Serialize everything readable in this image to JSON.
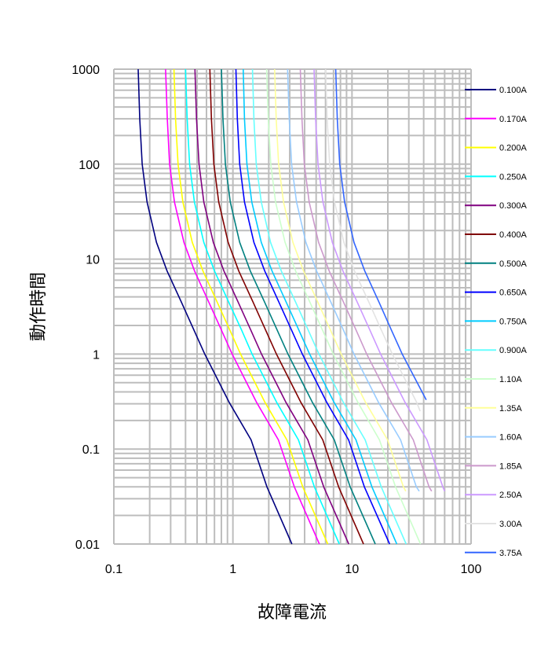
{
  "chart_data": {
    "type": "line",
    "title": "",
    "xlabel": "故障電流",
    "ylabel": "動作時間",
    "x_scale": "log",
    "y_scale": "log",
    "xlim": [
      0.1,
      100
    ],
    "ylim": [
      0.01,
      1000
    ],
    "grid": true,
    "legend_position": "right",
    "x_ticks": [
      "0.1",
      "1",
      "10",
      "100"
    ],
    "y_ticks": [
      "0.01",
      "0.1",
      "1",
      "10",
      "100",
      "1000"
    ],
    "series": [
      {
        "name": "0.100A",
        "color": "#000080",
        "points": [
          [
            0.16,
            1000
          ],
          [
            0.165,
            300
          ],
          [
            0.173,
            100
          ],
          [
            0.19,
            40
          ],
          [
            0.228,
            15
          ],
          [
            0.28,
            7.5
          ],
          [
            0.37,
            3.5
          ],
          [
            0.47,
            1.8
          ],
          [
            0.58,
            1
          ],
          [
            0.93,
            0.31
          ],
          [
            1.42,
            0.125
          ],
          [
            1.93,
            0.04
          ],
          [
            3.13,
            0.01
          ]
        ]
      },
      {
        "name": "0.170A",
        "color": "#FF00FF",
        "points": [
          [
            0.272,
            1000
          ],
          [
            0.281,
            300
          ],
          [
            0.294,
            100
          ],
          [
            0.323,
            40
          ],
          [
            0.388,
            15
          ],
          [
            0.476,
            7.5
          ],
          [
            0.629,
            3.5
          ],
          [
            0.799,
            1.8
          ],
          [
            0.986,
            1
          ],
          [
            1.58,
            0.31
          ],
          [
            2.41,
            0.125
          ],
          [
            3.28,
            0.04
          ],
          [
            5.32,
            0.01
          ]
        ]
      },
      {
        "name": "0.200A",
        "color": "#FFFF00",
        "points": [
          [
            0.32,
            1000
          ],
          [
            0.33,
            300
          ],
          [
            0.346,
            100
          ],
          [
            0.38,
            40
          ],
          [
            0.456,
            15
          ],
          [
            0.56,
            7.5
          ],
          [
            0.74,
            3.5
          ],
          [
            0.94,
            1.8
          ],
          [
            1.16,
            1
          ],
          [
            1.86,
            0.31
          ],
          [
            2.84,
            0.125
          ],
          [
            3.86,
            0.04
          ],
          [
            6.26,
            0.01
          ]
        ]
      },
      {
        "name": "0.250A",
        "color": "#00FFFF",
        "points": [
          [
            0.4,
            1000
          ],
          [
            0.413,
            300
          ],
          [
            0.433,
            100
          ],
          [
            0.475,
            40
          ],
          [
            0.57,
            15
          ],
          [
            0.7,
            7.5
          ],
          [
            0.925,
            3.5
          ],
          [
            1.18,
            1.8
          ],
          [
            1.45,
            1
          ],
          [
            2.33,
            0.31
          ],
          [
            3.55,
            0.125
          ],
          [
            4.83,
            0.04
          ],
          [
            7.83,
            0.01
          ]
        ]
      },
      {
        "name": "0.300A",
        "color": "#800080",
        "points": [
          [
            0.48,
            1000
          ],
          [
            0.495,
            300
          ],
          [
            0.519,
            100
          ],
          [
            0.57,
            40
          ],
          [
            0.684,
            15
          ],
          [
            0.84,
            7.5
          ],
          [
            1.11,
            3.5
          ],
          [
            1.41,
            1.8
          ],
          [
            1.74,
            1
          ],
          [
            2.79,
            0.31
          ],
          [
            4.26,
            0.125
          ],
          [
            5.79,
            0.04
          ],
          [
            9.39,
            0.01
          ]
        ]
      },
      {
        "name": "0.400A",
        "color": "#800000",
        "points": [
          [
            0.64,
            1000
          ],
          [
            0.66,
            300
          ],
          [
            0.692,
            100
          ],
          [
            0.76,
            40
          ],
          [
            0.912,
            15
          ],
          [
            1.12,
            7.5
          ],
          [
            1.48,
            3.5
          ],
          [
            1.88,
            1.8
          ],
          [
            2.32,
            1
          ],
          [
            3.72,
            0.31
          ],
          [
            5.68,
            0.125
          ],
          [
            7.72,
            0.04
          ],
          [
            12.5,
            0.01
          ]
        ]
      },
      {
        "name": "0.500A",
        "color": "#008080",
        "points": [
          [
            0.8,
            1000
          ],
          [
            0.825,
            300
          ],
          [
            0.865,
            100
          ],
          [
            0.95,
            40
          ],
          [
            1.14,
            15
          ],
          [
            1.4,
            7.5
          ],
          [
            1.85,
            3.5
          ],
          [
            2.35,
            1.8
          ],
          [
            2.9,
            1
          ],
          [
            4.65,
            0.31
          ],
          [
            7.1,
            0.125
          ],
          [
            9.65,
            0.04
          ],
          [
            15.7,
            0.01
          ]
        ]
      },
      {
        "name": "0.650A",
        "color": "#0000FF",
        "points": [
          [
            1.06,
            1000
          ],
          [
            1.09,
            300
          ],
          [
            1.14,
            100
          ],
          [
            1.25,
            40
          ],
          [
            1.5,
            15
          ],
          [
            1.85,
            7.5
          ],
          [
            2.44,
            3.5
          ],
          [
            3.1,
            1.8
          ],
          [
            3.83,
            1
          ],
          [
            6.14,
            0.31
          ],
          [
            9.37,
            0.125
          ],
          [
            12.7,
            0.04
          ],
          [
            20.7,
            0.01
          ]
        ]
      },
      {
        "name": "0.750A",
        "color": "#00CCFF",
        "points": [
          [
            1.22,
            1000
          ],
          [
            1.25,
            300
          ],
          [
            1.31,
            100
          ],
          [
            1.44,
            40
          ],
          [
            1.73,
            15
          ],
          [
            2.13,
            7.5
          ],
          [
            2.81,
            3.5
          ],
          [
            3.57,
            1.8
          ],
          [
            4.41,
            1
          ],
          [
            7.07,
            0.31
          ],
          [
            10.8,
            0.125
          ],
          [
            14.7,
            0.04
          ],
          [
            23.8,
            0.01
          ]
        ]
      },
      {
        "name": "0.900A",
        "color": "#66FFFF",
        "points": [
          [
            1.46,
            1000
          ],
          [
            1.5,
            300
          ],
          [
            1.57,
            100
          ],
          [
            1.73,
            40
          ],
          [
            2.07,
            15
          ],
          [
            2.55,
            7.5
          ],
          [
            3.37,
            3.5
          ],
          [
            4.28,
            1.8
          ],
          [
            5.28,
            1
          ],
          [
            8.46,
            0.31
          ],
          [
            12.9,
            0.125
          ],
          [
            17.6,
            0.04
          ],
          [
            28.5,
            0.01
          ]
        ]
      },
      {
        "name": "1.10A",
        "color": "#CCFFCC",
        "points": [
          [
            1.92,
            1000
          ],
          [
            1.98,
            300
          ],
          [
            2.08,
            100
          ],
          [
            2.28,
            40
          ],
          [
            2.74,
            15
          ],
          [
            3.36,
            7.5
          ],
          [
            4.44,
            3.5
          ],
          [
            5.64,
            1.8
          ],
          [
            6.96,
            1
          ],
          [
            11.2,
            0.31
          ],
          [
            17.0,
            0.125
          ],
          [
            23.2,
            0.04
          ],
          [
            37.6,
            0.01
          ]
        ]
      },
      {
        "name": "1.35A",
        "color": "#FFFF99",
        "points": [
          [
            2.24,
            1000
          ],
          [
            2.31,
            300
          ],
          [
            2.42,
            100
          ],
          [
            2.66,
            40
          ],
          [
            3.19,
            15
          ],
          [
            3.92,
            7.5
          ],
          [
            5.18,
            3.5
          ],
          [
            6.58,
            1.8
          ],
          [
            8.12,
            1
          ],
          [
            13.0,
            0.31
          ],
          [
            19.9,
            0.125
          ],
          [
            27.0,
            0.04
          ],
          [
            28.3,
            0.036
          ]
        ]
      },
      {
        "name": "1.60A",
        "color": "#99CCFF",
        "points": [
          [
            2.88,
            1000
          ],
          [
            2.97,
            300
          ],
          [
            3.11,
            100
          ],
          [
            3.42,
            40
          ],
          [
            4.1,
            15
          ],
          [
            5.04,
            7.5
          ],
          [
            6.66,
            3.5
          ],
          [
            8.46,
            1.8
          ],
          [
            10.4,
            1
          ],
          [
            16.7,
            0.31
          ],
          [
            25.6,
            0.125
          ],
          [
            34.7,
            0.04
          ],
          [
            36.7,
            0.036
          ]
        ]
      },
      {
        "name": "1.85A",
        "color": "#CC99CC",
        "points": [
          [
            3.68,
            1000
          ],
          [
            3.8,
            300
          ],
          [
            3.98,
            100
          ],
          [
            4.37,
            40
          ],
          [
            5.24,
            15
          ],
          [
            6.44,
            7.5
          ],
          [
            8.51,
            3.5
          ],
          [
            10.8,
            1.8
          ],
          [
            13.3,
            1
          ],
          [
            21.4,
            0.31
          ],
          [
            32.7,
            0.125
          ],
          [
            44.4,
            0.04
          ],
          [
            46.7,
            0.036
          ]
        ]
      },
      {
        "name": "2.50A",
        "color": "#CC99FF",
        "points": [
          [
            4.8,
            1000
          ],
          [
            4.95,
            300
          ],
          [
            5.19,
            100
          ],
          [
            5.7,
            40
          ],
          [
            6.84,
            15
          ],
          [
            8.4,
            7.5
          ],
          [
            11.1,
            3.5
          ],
          [
            14.1,
            1.8
          ],
          [
            17.4,
            1
          ],
          [
            27.9,
            0.31
          ],
          [
            42.6,
            0.125
          ],
          [
            57.9,
            0.04
          ],
          [
            60,
            0.036
          ]
        ]
      },
      {
        "name": "3.00A",
        "color": "#E3E3E3",
        "points": [
          [
            6.0,
            1000
          ],
          [
            6.19,
            300
          ],
          [
            6.49,
            100
          ],
          [
            7.13,
            40
          ],
          [
            8.55,
            15
          ],
          [
            10.5,
            7.5
          ],
          [
            13.9,
            3.5
          ],
          [
            17.6,
            1.8
          ],
          [
            21.8,
            1
          ],
          [
            34.9,
            0.31
          ],
          [
            37.4,
            0.25
          ]
        ]
      },
      {
        "name": "3.75A",
        "color": "#3366FF",
        "points": [
          [
            7.3,
            1000
          ],
          [
            7.52,
            300
          ],
          [
            7.89,
            100
          ],
          [
            8.66,
            40
          ],
          [
            10.4,
            15
          ],
          [
            12.8,
            7.5
          ],
          [
            16.9,
            3.5
          ],
          [
            21.4,
            1.8
          ],
          [
            26.4,
            1
          ],
          [
            42,
            0.33
          ]
        ]
      }
    ]
  }
}
